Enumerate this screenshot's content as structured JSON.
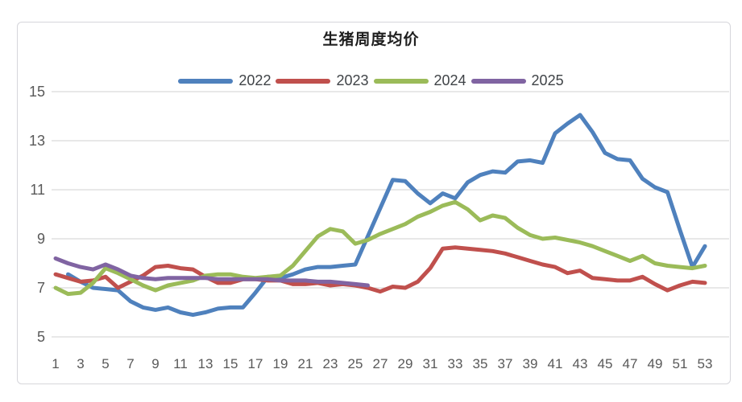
{
  "chart_data": {
    "type": "line",
    "title": "生猪周度均价",
    "xlabel": "",
    "ylabel": "",
    "ylim": [
      5,
      15
    ],
    "yticks": [
      "15",
      "13",
      "11",
      "9",
      "7",
      "5"
    ],
    "ytick_values": [
      15,
      13,
      11,
      9,
      7,
      5
    ],
    "xticks": [
      "1",
      "3",
      "5",
      "7",
      "9",
      "11",
      "13",
      "15",
      "17",
      "19",
      "21",
      "23",
      "25",
      "27",
      "29",
      "31",
      "33",
      "35",
      "37",
      "39",
      "41",
      "43",
      "45",
      "47",
      "49",
      "51",
      "53"
    ],
    "x_weeks_range": [
      1,
      53
    ],
    "grid": "horizontal",
    "legend_position": "top-center",
    "series": [
      {
        "name": "2022",
        "color": "#4f81bd",
        "values": [
          null,
          7.55,
          7.25,
          7.0,
          6.95,
          6.9,
          6.45,
          6.2,
          6.1,
          6.2,
          6.0,
          5.9,
          6.0,
          6.15,
          6.2,
          6.2,
          6.8,
          7.45,
          7.4,
          7.55,
          7.75,
          7.85,
          7.85,
          7.9,
          7.95,
          9.1,
          10.25,
          11.4,
          11.35,
          10.85,
          10.45,
          10.85,
          10.65,
          11.3,
          11.6,
          11.75,
          11.7,
          12.15,
          12.2,
          12.1,
          13.3,
          13.7,
          14.05,
          13.35,
          12.5,
          12.25,
          12.2,
          11.45,
          11.1,
          10.9,
          9.35,
          7.85,
          8.7
        ]
      },
      {
        "name": "2023",
        "color": "#c0504d",
        "values": [
          7.55,
          7.4,
          7.25,
          7.3,
          7.45,
          7.0,
          7.25,
          7.5,
          7.85,
          7.9,
          7.8,
          7.75,
          7.45,
          7.2,
          7.2,
          7.35,
          7.35,
          7.3,
          7.3,
          7.15,
          7.15,
          7.2,
          7.1,
          7.15,
          7.1,
          7.0,
          6.85,
          7.05,
          7.0,
          7.25,
          7.8,
          8.6,
          8.65,
          8.6,
          8.55,
          8.5,
          8.4,
          8.25,
          8.1,
          7.95,
          7.85,
          7.6,
          7.7,
          7.4,
          7.35,
          7.3,
          7.3,
          7.45,
          7.15,
          6.9,
          7.1,
          7.25,
          7.2
        ]
      },
      {
        "name": "2024",
        "color": "#9bbb59",
        "values": [
          7.0,
          6.75,
          6.8,
          7.2,
          7.8,
          7.6,
          7.35,
          7.1,
          6.9,
          7.1,
          7.2,
          7.3,
          7.5,
          7.55,
          7.55,
          7.45,
          7.4,
          7.45,
          7.5,
          7.9,
          8.5,
          9.1,
          9.4,
          9.3,
          8.8,
          8.95,
          9.2,
          9.4,
          9.6,
          9.9,
          10.1,
          10.35,
          10.5,
          10.2,
          9.75,
          9.95,
          9.85,
          9.45,
          9.15,
          9.0,
          9.05,
          8.95,
          8.85,
          8.7,
          8.5,
          8.3,
          8.1,
          8.3,
          8.0,
          7.9,
          7.85,
          7.8,
          7.9
        ]
      },
      {
        "name": "2025",
        "color": "#8064a2",
        "values": [
          8.2,
          8.0,
          7.85,
          7.75,
          7.95,
          7.75,
          7.5,
          7.4,
          7.35,
          7.4,
          7.4,
          7.4,
          7.4,
          7.35,
          7.35,
          7.35,
          7.35,
          7.35,
          7.3,
          7.3,
          7.3,
          7.25,
          7.25,
          7.2,
          7.15,
          7.1,
          null,
          null,
          null,
          null,
          null,
          null,
          null,
          null,
          null,
          null,
          null,
          null,
          null,
          null,
          null,
          null,
          null,
          null,
          null,
          null,
          null,
          null,
          null,
          null,
          null,
          null,
          null
        ]
      }
    ],
    "colors": {
      "gridline": "#d9d9d9",
      "tick_text": "#595959",
      "frame_border": "#d6d6db",
      "background": "#ffffff"
    }
  }
}
